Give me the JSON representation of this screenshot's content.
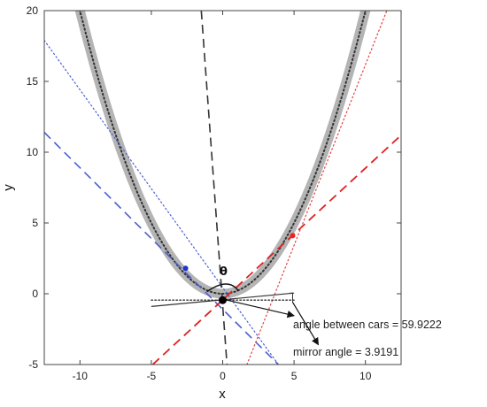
{
  "chart_data": {
    "type": "line",
    "xlabel": "x",
    "ylabel": "y",
    "xlim": [
      -12.5,
      12.5
    ],
    "ylim": [
      -5,
      20
    ],
    "xticks": [
      -10,
      -5,
      0,
      5,
      10
    ],
    "yticks": [
      -5,
      0,
      5,
      10,
      15,
      20
    ],
    "grid": false,
    "series": [
      {
        "style": "thick-gray",
        "function": "y = 0.2*x^2",
        "color": "#b4b4b4"
      },
      {
        "style": "dotted-black",
        "function": "y = 0.2*x^2",
        "color": "#333333"
      },
      {
        "style": "dashed-blue",
        "x": [
          -12.5,
          3.9
        ],
        "y": [
          11.4,
          -5
        ],
        "color": "#4a5fd0"
      },
      {
        "style": "dotted-blue",
        "x": [
          -12.5,
          3.9
        ],
        "y": [
          17.9,
          -5
        ],
        "color": "#4a5fd0"
      },
      {
        "style": "dashed-red",
        "x": [
          -4.9,
          12.5
        ],
        "y": [
          -5,
          11.2
        ],
        "color": "#e02020"
      },
      {
        "style": "dotted-red",
        "x": [
          1.7,
          11.5
        ],
        "y": [
          -5,
          20
        ],
        "color": "#e04040"
      },
      {
        "style": "dashed-black",
        "x": [
          -1.5,
          0.3
        ],
        "y": [
          20,
          -5
        ],
        "color": "#333333"
      },
      {
        "style": "solid-black",
        "x": [
          -5,
          5
        ],
        "y": [
          -0.9,
          0.05
        ],
        "color": "#333333"
      },
      {
        "style": "dotted-black-horizontal",
        "x": [
          -5,
          5
        ],
        "y": [
          -0.45,
          -0.45
        ],
        "color": "#333333"
      }
    ],
    "points": [
      {
        "x": -2.6,
        "y": 1.8,
        "color": "#2233cc"
      },
      {
        "x": 4.9,
        "y": 4.1,
        "color": "#ee2222"
      },
      {
        "x": 0,
        "y": -0.45,
        "color": "#000000"
      }
    ],
    "annotations": [
      {
        "text": "θ"
      },
      {
        "text": "angle between cars = 59.9222"
      },
      {
        "text": "mirror angle = 3.9191"
      }
    ]
  }
}
